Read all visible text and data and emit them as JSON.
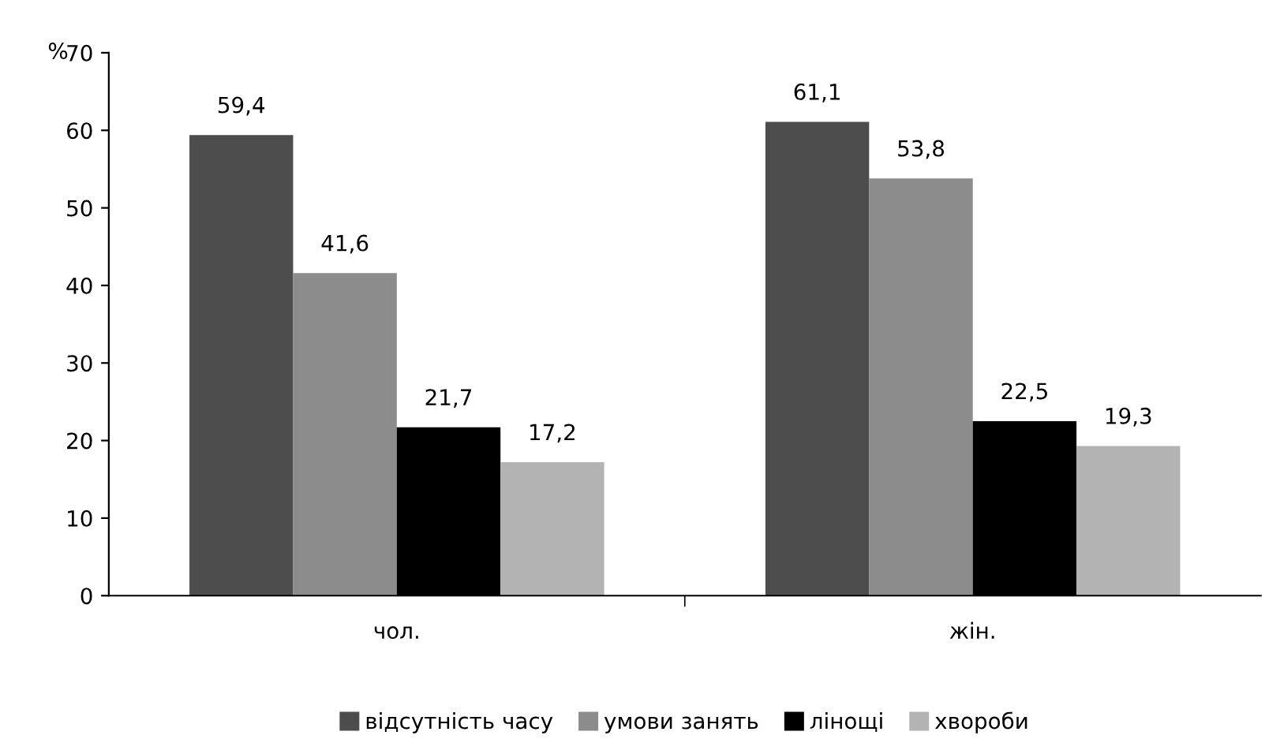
{
  "chart_data": {
    "type": "bar",
    "ylabel": "%",
    "categories": [
      "чол.",
      "жін."
    ],
    "series": [
      {
        "name": "відсутність часу",
        "color": "#4d4d4d",
        "values": [
          59.4,
          61.1
        ],
        "value_labels": [
          "59,4",
          "61,1"
        ]
      },
      {
        "name": "умови занять",
        "color": "#8c8c8c",
        "values": [
          41.6,
          53.8
        ],
        "value_labels": [
          "41,6",
          "53,8"
        ]
      },
      {
        "name": "лінощі",
        "color": "#000000",
        "values": [
          21.7,
          22.5
        ],
        "value_labels": [
          "21,7",
          "22,5"
        ]
      },
      {
        "name": "хвороби",
        "color": "#b3b3b3",
        "values": [
          17.2,
          19.3
        ],
        "value_labels": [
          "17,2",
          "19,3"
        ]
      }
    ],
    "ylim": [
      0,
      70
    ],
    "yticks": [
      0,
      10,
      20,
      30,
      40,
      50,
      60,
      70
    ],
    "grid": false,
    "legend": "bottom"
  }
}
